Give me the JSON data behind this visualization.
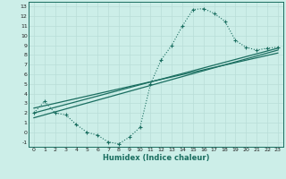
{
  "xlabel": "Humidex (Indice chaleur)",
  "bg_color": "#cceee8",
  "grid_color": "#b8ddd8",
  "line_color": "#1a6e60",
  "xlim": [
    -0.5,
    23.5
  ],
  "ylim": [
    -1.5,
    13.5
  ],
  "xticks": [
    0,
    1,
    2,
    3,
    4,
    5,
    6,
    7,
    8,
    9,
    10,
    11,
    12,
    13,
    14,
    15,
    16,
    17,
    18,
    19,
    20,
    21,
    22,
    23
  ],
  "yticks": [
    -1,
    0,
    1,
    2,
    3,
    4,
    5,
    6,
    7,
    8,
    9,
    10,
    11,
    12,
    13
  ],
  "curve_x": [
    0,
    1,
    2,
    3,
    4,
    5,
    6,
    7,
    8,
    9,
    10,
    11,
    12,
    13,
    14,
    15,
    16,
    17,
    18,
    19,
    20,
    21,
    22,
    23
  ],
  "curve_y": [
    2.0,
    3.2,
    2.0,
    1.8,
    0.8,
    0.0,
    -0.3,
    -1.0,
    -1.2,
    -0.5,
    0.5,
    5.0,
    7.5,
    9.0,
    11.0,
    12.7,
    12.8,
    12.3,
    11.5,
    9.5,
    8.8,
    8.5,
    8.7,
    8.8
  ],
  "line1_x0": 0,
  "line1_y0": 2.0,
  "line1_x1": 23,
  "line1_y1": 8.7,
  "line2_x0": 0,
  "line2_y0": 2.5,
  "line2_x1": 23,
  "line2_y1": 8.2,
  "line3_x0": 0,
  "line3_y0": 1.5,
  "line3_x1": 23,
  "line3_y1": 8.5
}
